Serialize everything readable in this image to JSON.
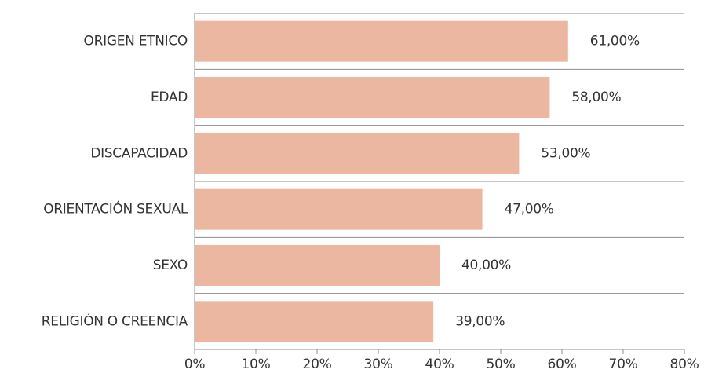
{
  "chart_data": {
    "type": "bar",
    "orientation": "horizontal",
    "categories": [
      "ORIGEN ETNICO",
      "EDAD",
      "DISCAPACIDAD",
      "ORIENTACIÓN SEXUAL",
      "SEXO",
      "RELIGIÓN O CREENCIA"
    ],
    "values": [
      61,
      58,
      53,
      47,
      40,
      39
    ],
    "value_labels": [
      "61,00%",
      "58,00%",
      "53,00%",
      "47,00%",
      "40,00%",
      "39,00%"
    ],
    "color": "#ebb7a0",
    "xlim": [
      0,
      80
    ],
    "xticks": [
      {
        "value": 0,
        "label": "0%"
      },
      {
        "value": 10,
        "label": "10%"
      },
      {
        "value": 20,
        "label": "20%"
      },
      {
        "value": 30,
        "label": "30%"
      },
      {
        "value": 40,
        "label": "40%"
      },
      {
        "value": 50,
        "label": "50%"
      },
      {
        "value": 60,
        "label": "60%"
      },
      {
        "value": 70,
        "label": "70%"
      },
      {
        "value": 80,
        "label": "80%"
      }
    ]
  }
}
